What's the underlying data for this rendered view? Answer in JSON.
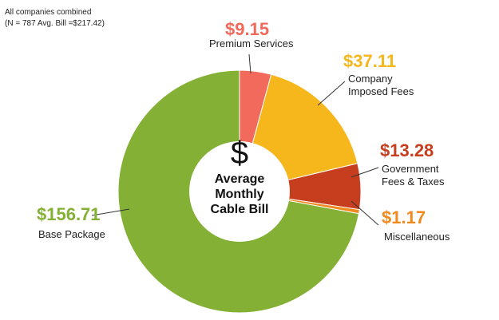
{
  "chart_data": {
    "type": "donut",
    "note": [
      "All companies combined",
      "(N = 787 Avg. Bill =$217.42)"
    ],
    "center_symbol": "$",
    "center_label": "Average Monthly Cable Bill",
    "categories": [
      "Premium Services",
      "Company Imposed Fees",
      "Government Fees & Taxes",
      "Miscellaneous",
      "Base Package"
    ],
    "values": [
      9.15,
      37.11,
      13.28,
      1.17,
      156.71
    ],
    "value_labels": [
      "$9.15",
      "$37.11",
      "$13.28",
      "$1.17",
      "$156.71"
    ],
    "colors": [
      "#f26a5b",
      "#f6b71d",
      "#c63e1e",
      "#f08a1f",
      "#84b135"
    ]
  }
}
